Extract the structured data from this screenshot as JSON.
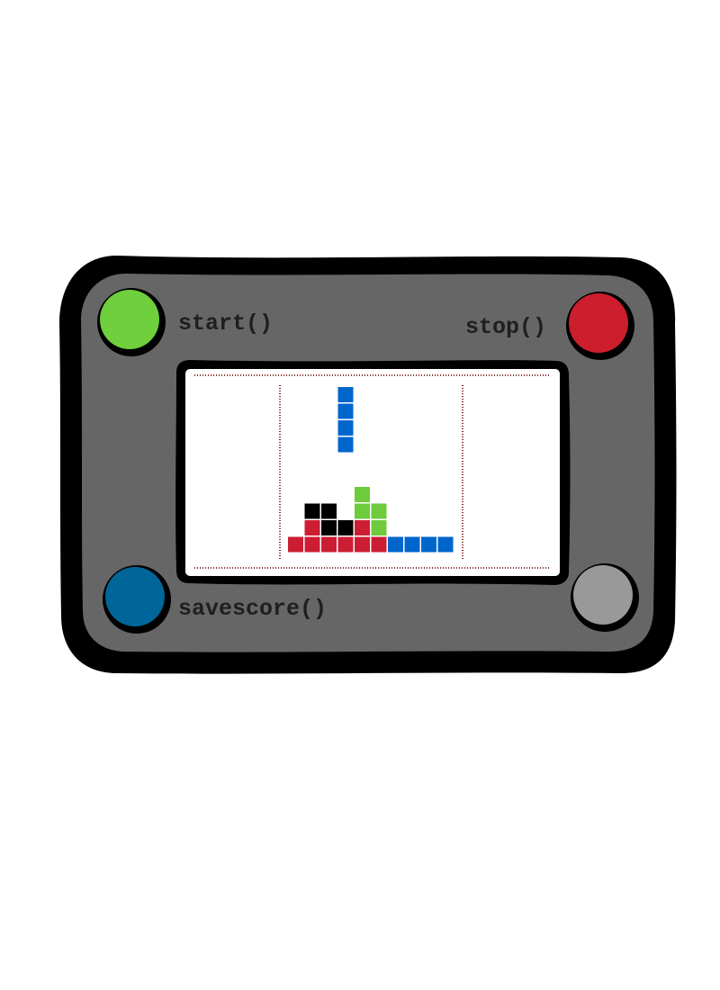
{
  "device": {
    "body_color": "#666666",
    "outline_color": "#000000",
    "screen_color": "#ffffff"
  },
  "buttons": {
    "start": {
      "label": "start()",
      "color": "#6fcf3c"
    },
    "stop": {
      "label": "stop()",
      "color": "#cd1e2e"
    },
    "savescore": {
      "label": "savescore()",
      "color": "#006699"
    },
    "unlabeled": {
      "color": "#999999"
    }
  },
  "game": {
    "colors": {
      "blue": "#0066cc",
      "red": "#cc1e33",
      "green": "#6ecb3c",
      "black": "#000000"
    },
    "grid_columns": 10,
    "falling_piece": {
      "color": "blue",
      "column": 3,
      "rows": [
        0,
        1,
        2,
        3
      ]
    },
    "stack": [
      {
        "column": 1,
        "row": 7,
        "color": "black"
      },
      {
        "column": 2,
        "row": 7,
        "color": "black"
      },
      {
        "column": 4,
        "row": 6,
        "color": "green"
      },
      {
        "column": 4,
        "row": 7,
        "color": "green"
      },
      {
        "column": 5,
        "row": 7,
        "color": "green"
      },
      {
        "column": 1,
        "row": 8,
        "color": "red"
      },
      {
        "column": 2,
        "row": 8,
        "color": "black"
      },
      {
        "column": 3,
        "row": 8,
        "color": "black"
      },
      {
        "column": 4,
        "row": 8,
        "color": "red"
      },
      {
        "column": 5,
        "row": 8,
        "color": "green"
      },
      {
        "column": 0,
        "row": 9,
        "color": "red"
      },
      {
        "column": 1,
        "row": 9,
        "color": "red"
      },
      {
        "column": 2,
        "row": 9,
        "color": "red"
      },
      {
        "column": 3,
        "row": 9,
        "color": "red"
      },
      {
        "column": 4,
        "row": 9,
        "color": "red"
      },
      {
        "column": 5,
        "row": 9,
        "color": "red"
      },
      {
        "column": 6,
        "row": 9,
        "color": "blue"
      },
      {
        "column": 7,
        "row": 9,
        "color": "blue"
      },
      {
        "column": 8,
        "row": 9,
        "color": "blue"
      },
      {
        "column": 9,
        "row": 9,
        "color": "blue"
      }
    ]
  }
}
